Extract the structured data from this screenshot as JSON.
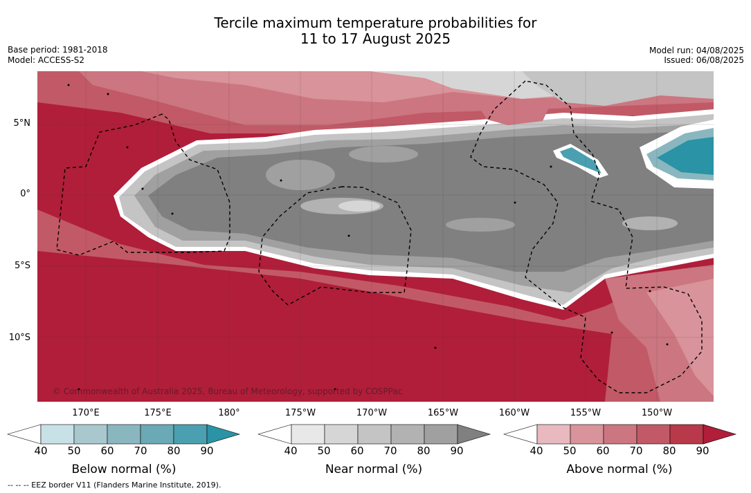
{
  "title_line1": "Tercile maximum temperature probabilities for",
  "title_line2": "11 to 17 August 2025",
  "base_period": "Base period: 1981-2018",
  "model": "Model: ACCESS-S2",
  "model_run": "Model run: 04/08/2025",
  "issued": "Issued: 06/08/2025",
  "lat_labels": [
    "5°N",
    "0°",
    "5°S",
    "10°S"
  ],
  "lon_labels": [
    "170°E",
    "175°E",
    "180°",
    "175°W",
    "170°W",
    "165°W",
    "160°W",
    "155°W",
    "150°W"
  ],
  "copyright": "© Commonwealth of Australia 2025, Bureau of Meteorology, supported by COSPPac",
  "footnote": "-- -- -- EEZ border V11 (Flanders Marine Institute, 2019).",
  "colorbars": [
    {
      "title": "Below normal (%)",
      "ticks": [
        "40",
        "50",
        "60",
        "70",
        "80",
        "90"
      ],
      "colors": [
        "#ffffff",
        "#c8e1e6",
        "#a8c8cd",
        "#8ab7bf",
        "#6aa9b5",
        "#4aa0b0",
        "#2a93a5"
      ]
    },
    {
      "title": "Near normal (%)",
      "ticks": [
        "40",
        "50",
        "60",
        "70",
        "80",
        "90"
      ],
      "colors": [
        "#ffffff",
        "#e8e8e8",
        "#d6d6d6",
        "#c4c4c4",
        "#b2b2b2",
        "#a0a0a0",
        "#808080"
      ]
    },
    {
      "title": "Above normal (%)",
      "ticks": [
        "40",
        "50",
        "60",
        "70",
        "80",
        "90"
      ],
      "colors": [
        "#ffffff",
        "#e8b9be",
        "#d9939a",
        "#cb7680",
        "#c15a66",
        "#b8394a",
        "#b01e3a"
      ]
    }
  ]
}
